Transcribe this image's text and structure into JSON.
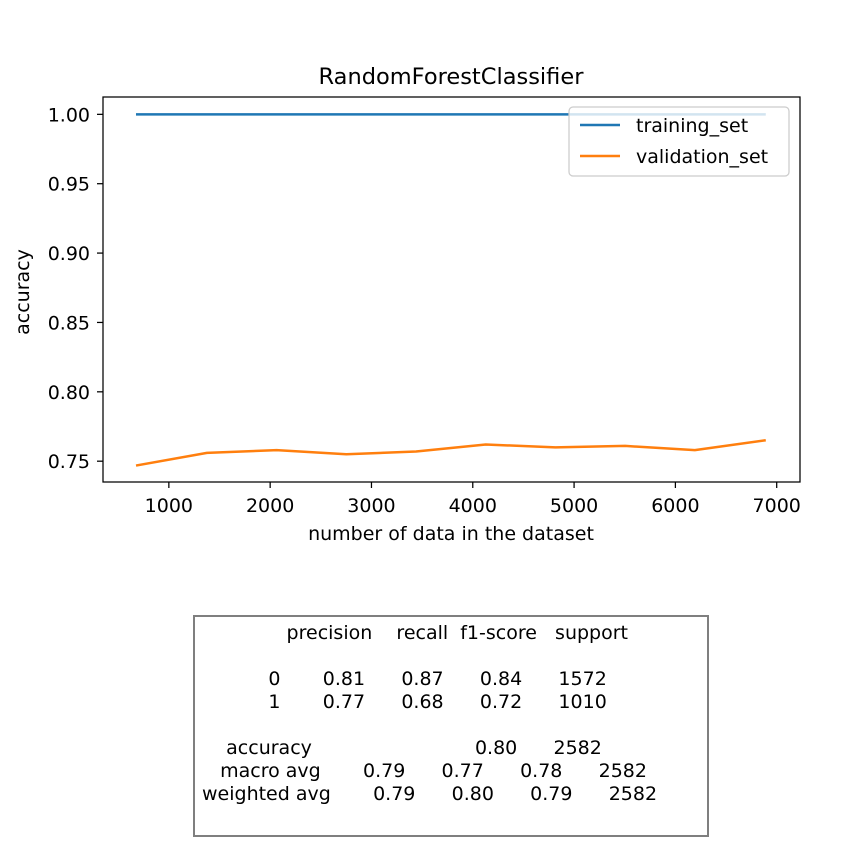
{
  "chart_data": {
    "type": "line",
    "title": "RandomForestClassifier",
    "xlabel": "number of data in the dataset",
    "ylabel": "accuracy",
    "xlim": [
      350,
      7230
    ],
    "ylim": [
      0.735,
      1.0125
    ],
    "xticks": [
      1000,
      2000,
      3000,
      4000,
      5000,
      6000,
      7000
    ],
    "xtick_labels": [
      "1000",
      "2000",
      "3000",
      "4000",
      "5000",
      "6000",
      "7000"
    ],
    "yticks": [
      0.75,
      0.8,
      0.85,
      0.9,
      0.95,
      1.0
    ],
    "ytick_labels": [
      "0.75",
      "0.80",
      "0.85",
      "0.90",
      "0.95",
      "1.00"
    ],
    "grid": false,
    "legend_position": "top-right",
    "x": [
      688,
      1376,
      2064,
      2752,
      3440,
      4128,
      4816,
      5504,
      6192,
      6880
    ],
    "series": [
      {
        "name": "training_set",
        "color": "#1f77b4",
        "values": [
          1.0,
          1.0,
          1.0,
          1.0,
          1.0,
          1.0,
          1.0,
          1.0,
          1.0,
          1.0
        ]
      },
      {
        "name": "validation_set",
        "color": "#ff7f0e",
        "values": [
          0.747,
          0.756,
          0.758,
          0.755,
          0.757,
          0.762,
          0.76,
          0.761,
          0.758,
          0.765
        ]
      }
    ]
  },
  "report": {
    "lines": [
      "              precision    recall  f1-score   support",
      "",
      "           0       0.81      0.87      0.84      1572",
      "           1       0.77      0.68      0.72      1010",
      "",
      "    accuracy                           0.80      2582",
      "   macro avg       0.79      0.77      0.78      2582",
      "weighted avg       0.79      0.80      0.79      2582"
    ]
  }
}
